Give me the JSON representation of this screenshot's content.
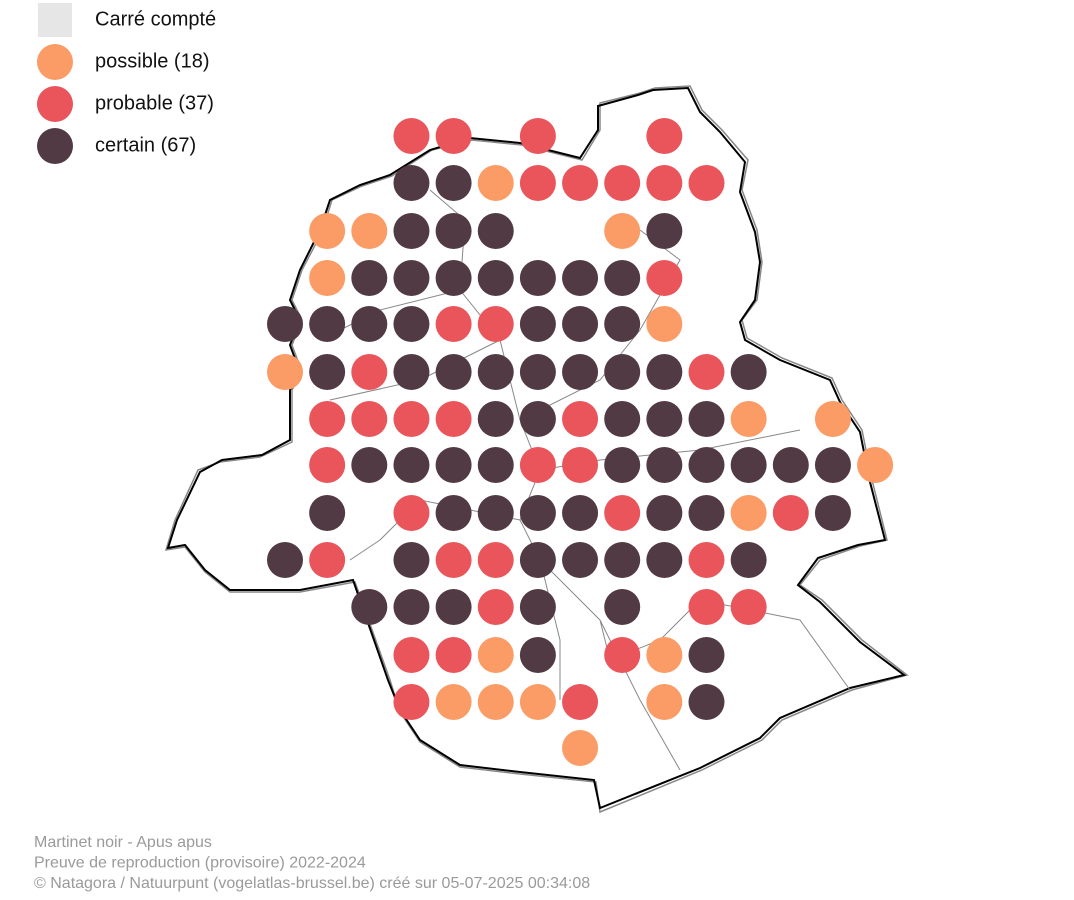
{
  "legend": {
    "items": [
      {
        "label": "Carré compté",
        "color": "#e6e6e6"
      },
      {
        "label": "possible (18)",
        "color": "#fb9b65"
      },
      {
        "label": "probable (37)",
        "color": "#e9555a"
      },
      {
        "label": "certain (67)",
        "color": "#513a43"
      }
    ]
  },
  "caption": {
    "lines": [
      "Martinet noir - Apus apus",
      "Preuve de reproduction (provisoire) 2022-2024",
      "© Natagora / Natuurpunt (vogelatlas-brussel.be) créé sur 05-07-2025 00:34:08"
    ]
  }
}
